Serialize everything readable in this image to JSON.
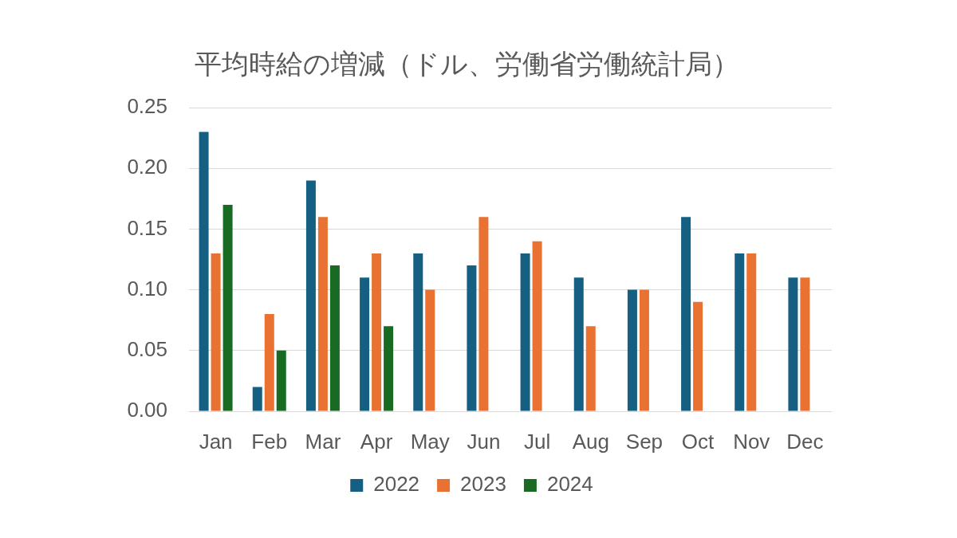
{
  "chart_data": {
    "type": "bar",
    "title": "平均時給の増減（ドル、労働省労働統計局）",
    "categories": [
      "Jan",
      "Feb",
      "Mar",
      "Apr",
      "May",
      "Jun",
      "Jul",
      "Aug",
      "Sep",
      "Oct",
      "Nov",
      "Dec"
    ],
    "series": [
      {
        "name": "2022",
        "color": "#156082",
        "values": [
          0.23,
          0.02,
          0.19,
          0.11,
          0.13,
          0.12,
          0.13,
          0.11,
          0.1,
          0.16,
          0.13,
          0.11
        ]
      },
      {
        "name": "2023",
        "color": "#e97132",
        "values": [
          0.13,
          0.08,
          0.16,
          0.13,
          0.1,
          0.16,
          0.14,
          0.07,
          0.1,
          0.09,
          0.13,
          0.11
        ]
      },
      {
        "name": "2024",
        "color": "#196b24",
        "values": [
          0.17,
          0.05,
          0.12,
          0.07,
          null,
          null,
          null,
          null,
          null,
          null,
          null,
          null
        ]
      }
    ],
    "ylim": [
      0,
      0.25
    ],
    "yticks": [
      {
        "value": 0,
        "label": "0.00"
      },
      0.05,
      {
        "value": 0.1,
        "label": "0.10"
      },
      0.15,
      {
        "value": 0.2,
        "label": "0.20"
      },
      0.25
    ],
    "grid": "y",
    "legend": "bottom"
  }
}
